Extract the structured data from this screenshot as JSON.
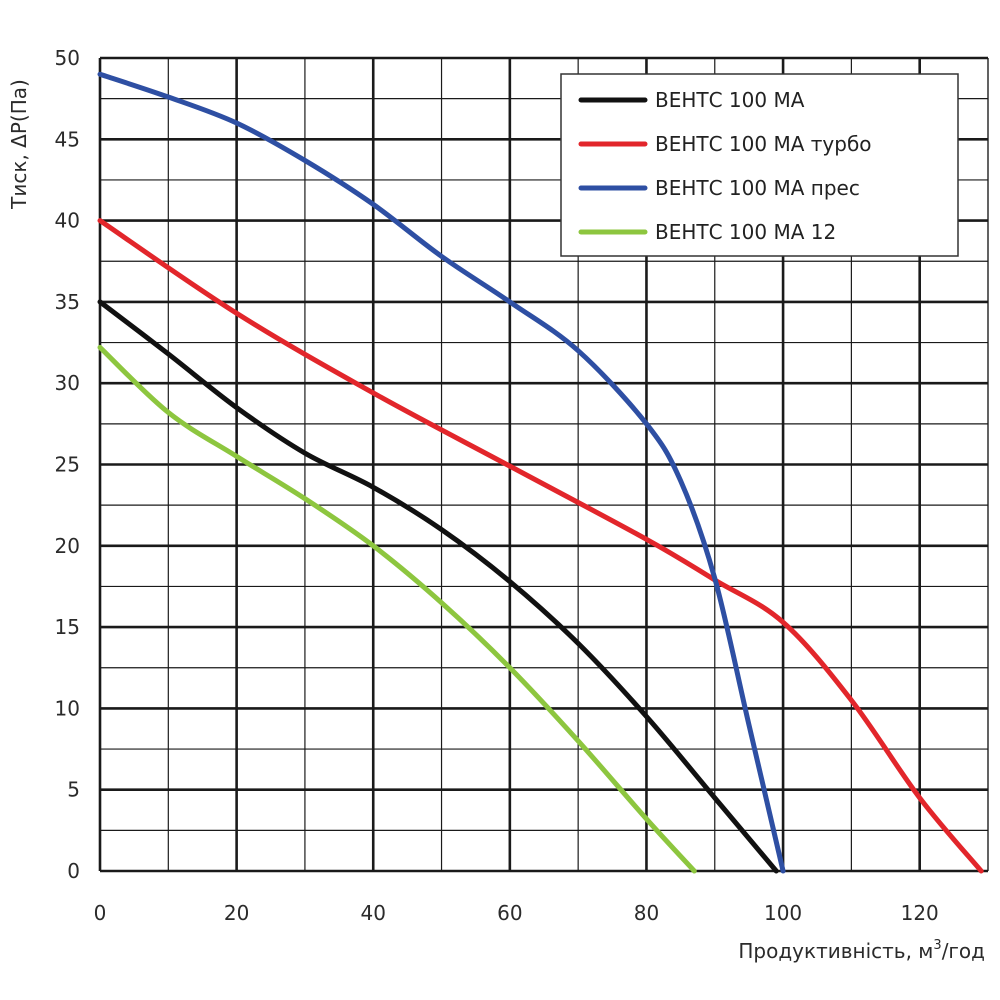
{
  "chart_data": {
    "type": "line",
    "title": "",
    "xlabel": "Продуктивність, м",
    "xlabel_sup": "3",
    "xlabel_suffix": "/год",
    "ylabel": "Тиск, ΔР(Па)",
    "xlim": [
      0,
      130
    ],
    "ylim": [
      0,
      50
    ],
    "x_ticks": [
      0,
      20,
      40,
      60,
      80,
      100,
      120
    ],
    "y_ticks": [
      0,
      5,
      10,
      15,
      20,
      25,
      30,
      35,
      40,
      45,
      50
    ],
    "grid": true,
    "legend_position": "top-right",
    "series": [
      {
        "name": "ВЕНТС 100 МА",
        "color": "#111111",
        "x": [
          0,
          10,
          20,
          30,
          40,
          50,
          60,
          70,
          80,
          90,
          99
        ],
        "y": [
          35,
          31.8,
          28.5,
          25.7,
          23.6,
          21.0,
          17.8,
          14.0,
          9.5,
          4.5,
          0
        ]
      },
      {
        "name": "ВЕНТС 100 МА турбо",
        "color": "#e2262b",
        "x": [
          0,
          20,
          40,
          60,
          80,
          90,
          100,
          110,
          120,
          129
        ],
        "y": [
          40,
          34.3,
          29.4,
          24.9,
          20.4,
          17.9,
          15.3,
          10.5,
          4.5,
          0
        ]
      },
      {
        "name": "ВЕНТС 100 МА прес",
        "color": "#2e4fa3",
        "x": [
          0,
          10,
          20,
          30,
          40,
          50,
          60,
          70,
          80,
          85,
          90,
          95,
          100
        ],
        "y": [
          49,
          47.6,
          46.0,
          43.7,
          41.0,
          37.8,
          35.0,
          32.0,
          27.5,
          24.0,
          18.0,
          9.0,
          0
        ]
      },
      {
        "name": "ВЕНТС 100 МА 12",
        "color": "#8dc63f",
        "x": [
          0,
          10,
          20,
          30,
          40,
          50,
          60,
          70,
          80,
          87
        ],
        "y": [
          32.2,
          28.2,
          25.5,
          22.9,
          20.0,
          16.5,
          12.5,
          8.0,
          3.2,
          0
        ]
      }
    ]
  }
}
